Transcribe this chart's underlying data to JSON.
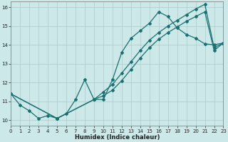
{
  "xlabel": "Humidex (Indice chaleur)",
  "bg_color": "#cce8e8",
  "grid_color": "#aacccc",
  "line_color": "#1a7070",
  "xlim": [
    0,
    23
  ],
  "ylim": [
    9.7,
    16.3
  ],
  "xticks": [
    0,
    1,
    2,
    3,
    4,
    5,
    6,
    7,
    8,
    9,
    10,
    11,
    12,
    13,
    14,
    15,
    16,
    17,
    18,
    19,
    20,
    21,
    22,
    23
  ],
  "yticks": [
    10,
    11,
    12,
    13,
    14,
    15,
    16
  ],
  "curve_x": [
    0,
    1,
    2,
    3,
    4,
    5,
    6,
    7,
    8,
    9,
    10,
    11,
    12,
    13,
    14,
    15,
    16,
    17,
    18,
    19,
    20,
    21,
    22,
    23
  ],
  "curve_y": [
    11.4,
    10.8,
    10.5,
    10.1,
    10.25,
    10.1,
    10.35,
    11.1,
    12.15,
    11.1,
    11.1,
    12.15,
    13.6,
    14.35,
    14.75,
    15.15,
    15.75,
    15.5,
    14.9,
    14.55,
    14.35,
    14.05,
    14.0,
    14.1
  ],
  "diag1_x": [
    0,
    5,
    9,
    10,
    11,
    12,
    13,
    14,
    15,
    16,
    17,
    18,
    19,
    20,
    21,
    22,
    23
  ],
  "diag1_y": [
    11.4,
    10.1,
    11.1,
    11.5,
    11.9,
    12.5,
    13.1,
    13.7,
    14.25,
    14.65,
    15.0,
    15.3,
    15.6,
    15.9,
    16.15,
    13.85,
    14.1
  ],
  "diag2_x": [
    0,
    5,
    9,
    10,
    11,
    12,
    13,
    14,
    15,
    16,
    17,
    18,
    19,
    20,
    21,
    22,
    23
  ],
  "diag2_y": [
    11.4,
    10.1,
    11.1,
    11.3,
    11.6,
    12.1,
    12.7,
    13.3,
    13.85,
    14.3,
    14.65,
    14.95,
    15.25,
    15.5,
    15.75,
    13.7,
    14.1
  ]
}
